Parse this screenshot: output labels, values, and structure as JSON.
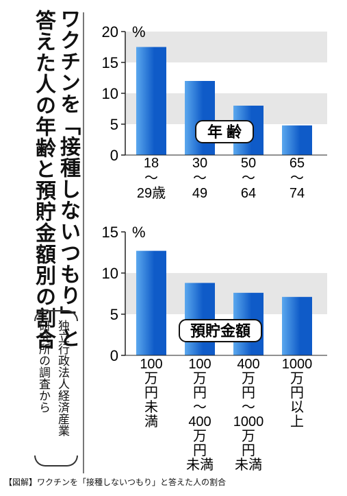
{
  "title": {
    "line1": "ワクチンを「接種しないつもり」と",
    "line2": "答えた人の年齢と預貯金額別の割合"
  },
  "source": {
    "line1": "独立行政法人経済産業",
    "line2": "研究所の調査から"
  },
  "caption": "【図解】ワクチンを「接種しないつもり」と答えた人の割合",
  "colors": {
    "bar_top": "#5ba8ee",
    "bar_bottom": "#0f5bc8",
    "band": "#e6e6e6",
    "axis": "#222222"
  },
  "chart_data": [
    {
      "type": "bar",
      "title": "年 齢",
      "unit": "%",
      "ylim": [
        0,
        20
      ],
      "yticks": [
        "0",
        "5",
        "10",
        "15",
        "20"
      ],
      "categories": [
        [
          "18",
          "～",
          "29歳"
        ],
        [
          "30",
          "～",
          "49"
        ],
        [
          "50",
          "～",
          "64"
        ],
        [
          "65",
          "～",
          "74"
        ]
      ],
      "values": [
        17.5,
        12,
        8,
        4.8
      ]
    },
    {
      "type": "bar",
      "title": "預貯金額",
      "unit": "%",
      "ylim": [
        0,
        15
      ],
      "yticks": [
        "0",
        "5",
        "10",
        "15"
      ],
      "categories": [
        [
          "100",
          "万",
          "円",
          "未",
          "満"
        ],
        [
          "100",
          "万",
          "円",
          "～",
          "400",
          "万",
          "円",
          "未満"
        ],
        [
          "400",
          "万",
          "円",
          "～",
          "1000",
          "万",
          "円",
          "未満"
        ],
        [
          "1000",
          "万",
          "円",
          "以",
          "上"
        ]
      ],
      "values": [
        12.7,
        8.8,
        7.6,
        7.1
      ]
    }
  ]
}
